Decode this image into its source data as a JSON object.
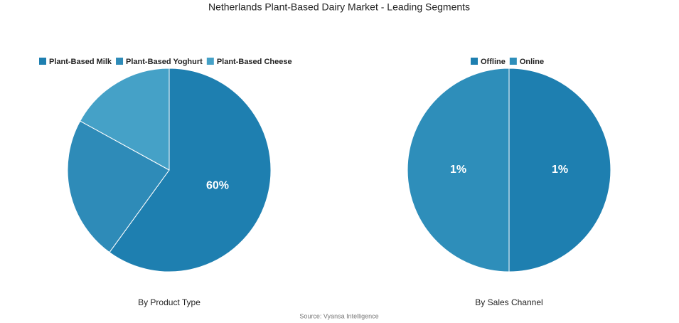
{
  "title": "Netherlands Plant-Based Dairy Market - Leading Segments",
  "source": "Source: Vyansa Intelligence",
  "chart_data": [
    {
      "type": "pie",
      "title": "By Product Type",
      "categories": [
        "Plant-Based Milk",
        "Plant-Based Yoghurt",
        "Plant-Based Cheese"
      ],
      "values": [
        60,
        23,
        17
      ],
      "value_labels": [
        "60%",
        null,
        null
      ],
      "colors": [
        "#1e7fb0",
        "#2e8bb8",
        "#45a1c7"
      ]
    },
    {
      "type": "pie",
      "title": "By Sales Channel",
      "categories": [
        "Offline",
        "Online"
      ],
      "values": [
        1,
        1
      ],
      "value_labels": [
        "1%",
        "1%"
      ],
      "colors": [
        "#1e7fb0",
        "#2e8eba"
      ]
    }
  ]
}
